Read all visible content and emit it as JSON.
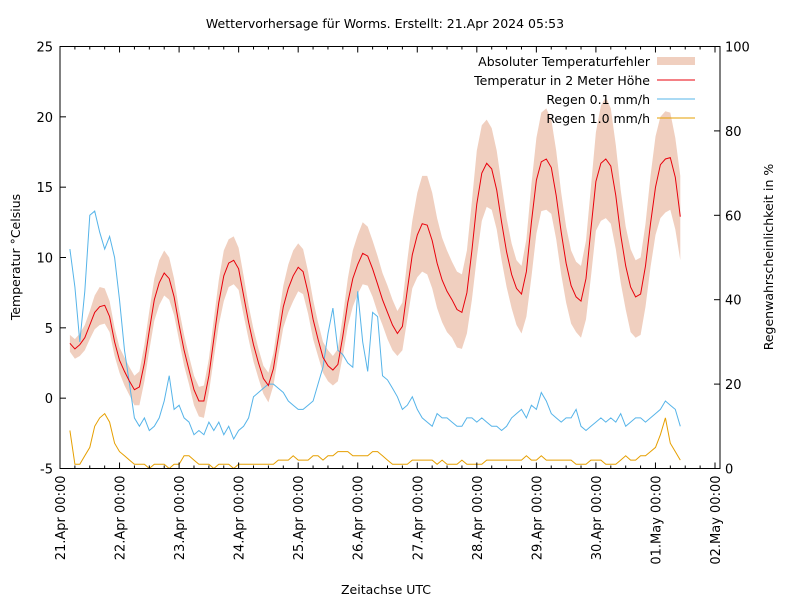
{
  "chart_data": {
    "type": "line",
    "title": "Wettervorhersage für Worms. Erstellt: 21.Apr 2024 05:53",
    "xlabel": "Zeitachse UTC",
    "ylabel": "Temperatur °Celsius",
    "y2label": "Regenwahrscheinlichkeit in %",
    "ylim": [
      -5,
      25
    ],
    "y2lim": [
      0,
      100
    ],
    "yticks": [
      -5,
      0,
      5,
      10,
      15,
      20,
      25
    ],
    "y2ticks": [
      0,
      20,
      40,
      60,
      80,
      100
    ],
    "xlim_hours": [
      0,
      264
    ],
    "xticks": [
      {
        "hour": 0,
        "label": "21.Apr 00:00"
      },
      {
        "hour": 24,
        "label": "22.Apr 00:00"
      },
      {
        "hour": 48,
        "label": "23.Apr 00:00"
      },
      {
        "hour": 72,
        "label": "24.Apr 00:00"
      },
      {
        "hour": 96,
        "label": "25.Apr 00:00"
      },
      {
        "hour": 120,
        "label": "26.Apr 00:00"
      },
      {
        "hour": 144,
        "label": "27.Apr 00:00"
      },
      {
        "hour": 168,
        "label": "28.Apr 00:00"
      },
      {
        "hour": 192,
        "label": "29.Apr 00:00"
      },
      {
        "hour": 216,
        "label": "30.Apr 00:00"
      },
      {
        "hour": 240,
        "label": "01.May 00:00"
      },
      {
        "hour": 264,
        "label": "02.May 00:00"
      }
    ],
    "grid": false,
    "legend_position": "top-right",
    "legend": [
      {
        "label": "Absoluter Temperaturfehler",
        "kind": "band",
        "color": "#f0cfbf"
      },
      {
        "label": "Temperatur in 2 Meter Höhe",
        "kind": "line",
        "color": "#e8000b"
      },
      {
        "label": "Regen 0.1 mm/h",
        "kind": "line",
        "color": "#56b4e9"
      },
      {
        "label": "Regen 1.0 mm/h",
        "kind": "line",
        "color": "#e69f00"
      }
    ],
    "x_hours": [
      4,
      6,
      8,
      10,
      12,
      14,
      16,
      18,
      20,
      22,
      24,
      26,
      28,
      30,
      32,
      34,
      36,
      38,
      40,
      42,
      44,
      46,
      48,
      50,
      52,
      54,
      56,
      58,
      60,
      62,
      64,
      66,
      68,
      70,
      72,
      74,
      76,
      78,
      80,
      82,
      84,
      86,
      88,
      90,
      92,
      94,
      96,
      98,
      100,
      102,
      104,
      106,
      108,
      110,
      112,
      114,
      116,
      118,
      120,
      122,
      124,
      126,
      128,
      130,
      132,
      134,
      136,
      138,
      140,
      142,
      144,
      146,
      148,
      150,
      152,
      154,
      156,
      158,
      160,
      162,
      164,
      166,
      168,
      170,
      172,
      174,
      176,
      178,
      180,
      182,
      184,
      186,
      188,
      190,
      192,
      194,
      196,
      198,
      200,
      202,
      204,
      206,
      208,
      210,
      212,
      214,
      216,
      218,
      220,
      222,
      224,
      226,
      228,
      230,
      232,
      234,
      236,
      238,
      240,
      242,
      244,
      246,
      248,
      250
    ],
    "series": [
      {
        "name": "Temperatur in 2 Meter Höhe",
        "axis": "y",
        "values": [
          3.9,
          3.5,
          3.8,
          4.3,
          5.2,
          6.1,
          6.5,
          6.6,
          5.8,
          4.0,
          2.7,
          1.9,
          1.2,
          0.6,
          0.8,
          2.5,
          4.8,
          7.0,
          8.2,
          8.9,
          8.5,
          7.2,
          5.2,
          3.4,
          2.0,
          0.6,
          -0.2,
          -0.2,
          1.6,
          4.2,
          6.8,
          8.7,
          9.6,
          9.8,
          9.2,
          7.3,
          5.4,
          3.8,
          2.5,
          1.4,
          0.9,
          2.1,
          4.3,
          6.5,
          7.8,
          8.7,
          9.3,
          9.0,
          7.5,
          5.6,
          4.2,
          2.9,
          2.3,
          2.0,
          2.4,
          4.4,
          6.8,
          8.5,
          9.5,
          10.3,
          10.1,
          9.2,
          8.1,
          7.0,
          6.1,
          5.2,
          4.6,
          5.1,
          7.7,
          10.2,
          11.6,
          12.4,
          12.3,
          11.2,
          9.6,
          8.4,
          7.6,
          7.0,
          6.3,
          6.1,
          7.5,
          10.5,
          13.8,
          16.0,
          16.7,
          16.3,
          14.8,
          12.5,
          10.4,
          8.8,
          7.8,
          7.4,
          9.0,
          12.5,
          15.5,
          16.8,
          17.0,
          16.4,
          14.4,
          11.8,
          9.6,
          8.0,
          7.2,
          6.9,
          8.5,
          12.0,
          15.4,
          16.7,
          17.0,
          16.5,
          14.4,
          11.6,
          9.4,
          7.9,
          7.2,
          7.4,
          9.4,
          12.4,
          15.0,
          16.6,
          17.0,
          17.1,
          15.7,
          12.9
        ]
      },
      {
        "name": "Absoluter Temperaturfehler (oberer Rand)",
        "axis": "y",
        "values": [
          4.5,
          4.2,
          4.6,
          5.2,
          6.2,
          7.3,
          7.9,
          7.8,
          6.9,
          5.0,
          3.6,
          2.9,
          2.2,
          1.6,
          1.9,
          3.8,
          6.2,
          8.5,
          9.8,
          10.5,
          10.0,
          8.5,
          6.3,
          4.5,
          3.0,
          1.6,
          0.8,
          0.9,
          2.8,
          5.6,
          8.4,
          10.5,
          11.3,
          11.5,
          10.7,
          8.7,
          6.6,
          4.9,
          3.5,
          2.3,
          1.8,
          3.2,
          5.6,
          8.0,
          9.5,
          10.5,
          11.0,
          10.6,
          9.0,
          7.0,
          5.4,
          4.0,
          3.4,
          3.0,
          3.5,
          5.8,
          8.5,
          10.5,
          11.6,
          12.5,
          12.2,
          11.2,
          10.1,
          8.9,
          8.0,
          7.0,
          6.2,
          6.8,
          9.8,
          12.6,
          14.6,
          15.8,
          15.8,
          14.6,
          12.8,
          11.4,
          10.5,
          9.7,
          9.0,
          8.8,
          10.5,
          14.0,
          17.6,
          19.4,
          19.8,
          19.2,
          17.6,
          15.2,
          12.8,
          11.0,
          9.8,
          9.4,
          11.3,
          15.2,
          18.5,
          20.3,
          20.6,
          19.8,
          17.6,
          14.6,
          12.2,
          10.5,
          9.7,
          9.4,
          11.2,
          15.0,
          18.9,
          20.8,
          21.4,
          20.6,
          18.0,
          14.8,
          12.2,
          10.6,
          9.8,
          10.0,
          12.4,
          15.8,
          18.6,
          20.0,
          20.4,
          20.3,
          18.5,
          15.8
        ]
      },
      {
        "name": "Absoluter Temperaturfehler (unterer Rand)",
        "axis": "y",
        "values": [
          3.3,
          2.8,
          3.0,
          3.4,
          4.2,
          4.9,
          5.2,
          5.3,
          4.7,
          3.0,
          1.8,
          0.9,
          0.2,
          -0.5,
          -0.5,
          1.2,
          3.4,
          5.5,
          6.6,
          7.3,
          7.0,
          5.9,
          4.1,
          2.3,
          1.0,
          -0.5,
          -1.3,
          -1.4,
          0.4,
          2.8,
          5.2,
          6.9,
          7.9,
          8.1,
          7.7,
          5.9,
          4.2,
          2.6,
          1.4,
          0.3,
          -0.3,
          0.9,
          3.0,
          5.0,
          6.1,
          6.9,
          7.6,
          7.4,
          6.0,
          4.2,
          3.0,
          1.8,
          1.2,
          0.9,
          1.2,
          3.0,
          5.1,
          6.5,
          7.4,
          8.1,
          8.0,
          7.2,
          6.1,
          5.2,
          4.2,
          3.4,
          3.0,
          3.4,
          5.6,
          7.8,
          8.6,
          9.0,
          8.8,
          7.8,
          6.4,
          5.4,
          4.7,
          4.3,
          3.6,
          3.5,
          4.6,
          7.0,
          10.0,
          12.6,
          13.6,
          13.4,
          12.0,
          9.8,
          7.9,
          6.4,
          5.2,
          4.6,
          5.8,
          8.6,
          11.7,
          13.3,
          13.4,
          13.1,
          11.3,
          8.8,
          6.8,
          5.3,
          4.7,
          4.3,
          5.6,
          8.6,
          11.9,
          12.6,
          12.8,
          12.4,
          10.6,
          8.2,
          6.3,
          4.7,
          4.3,
          4.5,
          6.5,
          9.3,
          11.6,
          12.8,
          13.2,
          13.4,
          12.0,
          9.8
        ]
      },
      {
        "name": "Regen 0.1 mm/h",
        "axis": "y2",
        "values": [
          52,
          43,
          30,
          42,
          60,
          61,
          56,
          52,
          55,
          50,
          40,
          28,
          20,
          12,
          10,
          12,
          9,
          10,
          12,
          16,
          22,
          14,
          15,
          12,
          11,
          8,
          9,
          8,
          11,
          9,
          11,
          8,
          10,
          7,
          9,
          10,
          12,
          17,
          18,
          19,
          20,
          20,
          19,
          18,
          16,
          15,
          14,
          14,
          15,
          16,
          20,
          24,
          32,
          38,
          28,
          27,
          25,
          24,
          42,
          30,
          23,
          37,
          36,
          22,
          21,
          19,
          17,
          14,
          15,
          17,
          14,
          12,
          11,
          10,
          13,
          12,
          12,
          11,
          10,
          10,
          12,
          12,
          11,
          12,
          11,
          10,
          10,
          9,
          10,
          12,
          13,
          14,
          12,
          15,
          14,
          18,
          16,
          13,
          12,
          11,
          12,
          12,
          14,
          10,
          9,
          10,
          11,
          12,
          11,
          12,
          11,
          13,
          10,
          11,
          12,
          12,
          11,
          12,
          13,
          14,
          16,
          15,
          14,
          10
        ]
      },
      {
        "name": "Regen 1.0 mm/h",
        "axis": "y2",
        "values": [
          9,
          1,
          1,
          3,
          5,
          10,
          12,
          13,
          11,
          6,
          4,
          3,
          2,
          1,
          1,
          1,
          0,
          1,
          1,
          1,
          0,
          1,
          1,
          3,
          3,
          2,
          1,
          1,
          1,
          0,
          1,
          1,
          1,
          0,
          1,
          1,
          1,
          1,
          1,
          1,
          1,
          1,
          2,
          2,
          2,
          3,
          2,
          2,
          2,
          3,
          3,
          2,
          3,
          3,
          4,
          4,
          4,
          3,
          3,
          3,
          3,
          4,
          4,
          3,
          2,
          1,
          1,
          1,
          1,
          2,
          2,
          2,
          2,
          2,
          1,
          2,
          1,
          1,
          1,
          2,
          1,
          1,
          1,
          1,
          2,
          2,
          2,
          2,
          2,
          2,
          2,
          2,
          3,
          2,
          2,
          3,
          2,
          2,
          2,
          2,
          2,
          2,
          1,
          1,
          1,
          2,
          2,
          2,
          1,
          1,
          1,
          2,
          3,
          2,
          2,
          3,
          3,
          4,
          5,
          8,
          12,
          6,
          4,
          2
        ]
      }
    ]
  }
}
